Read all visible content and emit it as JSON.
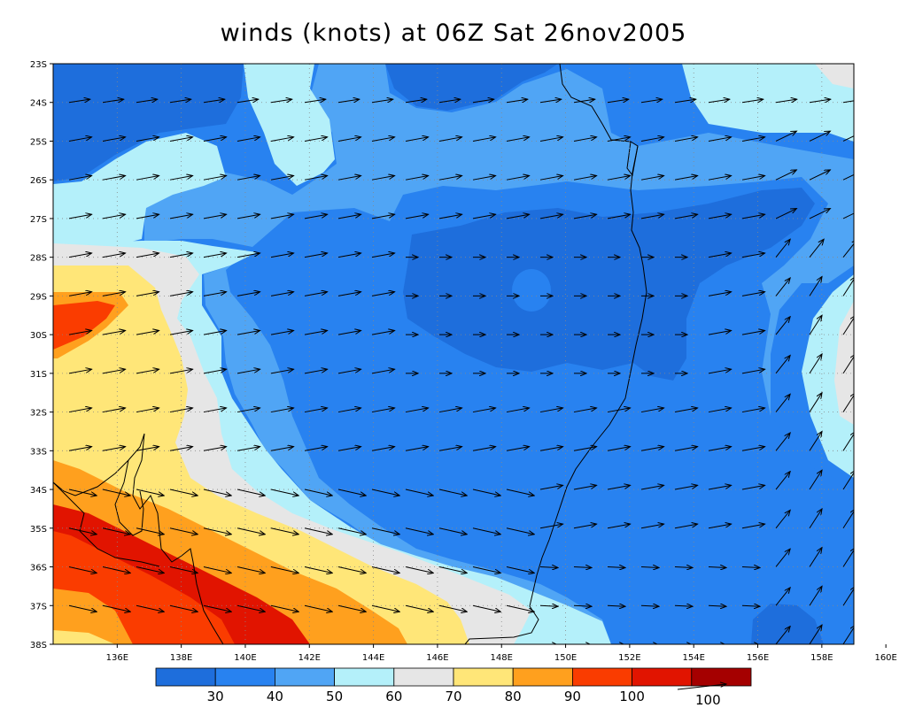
{
  "title": "winds (knots) at 06Z Sat 26nov2005",
  "map": {
    "lat_labels": [
      "23S",
      "24S",
      "25S",
      "26S",
      "27S",
      "28S",
      "29S",
      "30S",
      "31S",
      "32S",
      "33S",
      "34S",
      "35S",
      "36S",
      "37S",
      "38S"
    ],
    "lon_labels": [
      "136E",
      "138E",
      "140E",
      "142E",
      "144E",
      "146E",
      "148E",
      "150E",
      "152E",
      "154E",
      "156E",
      "158E",
      "160E"
    ],
    "lon_range": [
      135,
      160
    ],
    "lat_range": [
      -23,
      -38
    ],
    "grid": "dotted",
    "vectors": "wind arrows (direction shown only)"
  },
  "colorbar": {
    "colors": [
      "#1e6edc",
      "#2882f0",
      "#50a5f5",
      "#b4f0fa",
      "#e6e6e6",
      "#ffe678",
      "#ffa01e",
      "#fa3c00",
      "#e11400",
      "#a50000"
    ],
    "labels": [
      "30",
      "40",
      "50",
      "60",
      "70",
      "80",
      "90",
      "100"
    ],
    "overflow_label": "100"
  }
}
